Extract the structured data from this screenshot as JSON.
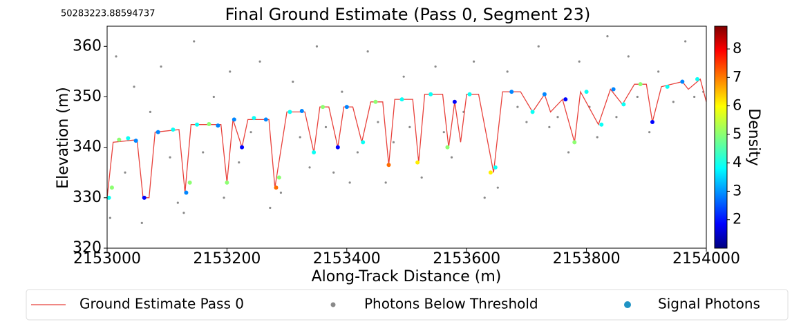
{
  "chart_data": {
    "type": "scatter",
    "title": "Final Ground Estimate (Pass 0, Segment 23)",
    "annotation": "50283223.88594737",
    "x_label": "Along-Track Distance (m)",
    "y_label": "Elevation (m)",
    "xlim": [
      2153000,
      2154000
    ],
    "ylim": [
      320,
      364
    ],
    "xticks": [
      2153000,
      2153200,
      2153400,
      2153600,
      2153800,
      2154000
    ],
    "yticks": [
      320,
      330,
      340,
      350,
      360
    ],
    "colorbar": {
      "label": "Density",
      "colormap": "jet",
      "clim": [
        1,
        8.8
      ],
      "ticks": [
        2,
        3,
        4,
        5,
        6,
        7,
        8
      ]
    },
    "legend": "bottom",
    "line": {
      "name": "Ground Estimate Pass 0",
      "color": "#e8413b",
      "x": [
        2153000,
        2153010,
        2153050,
        2153060,
        2153070,
        2153080,
        2153120,
        2153130,
        2153140,
        2153190,
        2153200,
        2153210,
        2153225,
        2153235,
        2153270,
        2153280,
        2153300,
        2153330,
        2153345,
        2153355,
        2153370,
        2153385,
        2153395,
        2153410,
        2153425,
        2153440,
        2153460,
        2153470,
        2153480,
        2153510,
        2153520,
        2153530,
        2153560,
        2153570,
        2153580,
        2153590,
        2153600,
        2153620,
        2153645,
        2153660,
        2153690,
        2153710,
        2153730,
        2153740,
        2153760,
        2153780,
        2153790,
        2153820,
        2153840,
        2153860,
        2153880,
        2153900,
        2153910,
        2153925,
        2153960,
        2153970,
        2153990,
        2154000
      ],
      "y": [
        330,
        341,
        341.5,
        330,
        330,
        343,
        343.5,
        331,
        344.5,
        344.5,
        333,
        345.5,
        340,
        345.5,
        345.5,
        332,
        347,
        347,
        339,
        348,
        348,
        340,
        348,
        348,
        341,
        349,
        349,
        336.5,
        349.5,
        349.5,
        337,
        350.5,
        350.5,
        340,
        349,
        341,
        350.5,
        350.5,
        335,
        351,
        351,
        347,
        350.5,
        347,
        349.5,
        341,
        351,
        344.5,
        351.5,
        348.5,
        352.5,
        352.5,
        345,
        352,
        353,
        351.5,
        353.5,
        349
      ]
    },
    "gray": {
      "name": "Photons Below Threshold",
      "color": "#8a8a8a",
      "x": [
        2153005,
        2153015,
        2153030,
        2153045,
        2153058,
        2153072,
        2153090,
        2153105,
        2153118,
        2153128,
        2153145,
        2153160,
        2153178,
        2153195,
        2153205,
        2153220,
        2153240,
        2153255,
        2153272,
        2153290,
        2153310,
        2153322,
        2153338,
        2153350,
        2153365,
        2153378,
        2153392,
        2153405,
        2153418,
        2153435,
        2153452,
        2153465,
        2153478,
        2153495,
        2153505,
        2153525,
        2153548,
        2153562,
        2153575,
        2153595,
        2153612,
        2153630,
        2153652,
        2153668,
        2153685,
        2153700,
        2153720,
        2153738,
        2153752,
        2153770,
        2153788,
        2153805,
        2153818,
        2153835,
        2153850,
        2153870,
        2153885,
        2153905,
        2153920,
        2153945,
        2153965,
        2153980,
        2153995
      ],
      "y": [
        326,
        358,
        335,
        352,
        325,
        347,
        356,
        338,
        329,
        327,
        361,
        339,
        350,
        330,
        355,
        337,
        343,
        357,
        328,
        331,
        353,
        342,
        336,
        360,
        344,
        335,
        351,
        333,
        339,
        359,
        345,
        333,
        341,
        354,
        344,
        334,
        356,
        343,
        338,
        347,
        357,
        330,
        332,
        355,
        348,
        345,
        360,
        344,
        346,
        339,
        357,
        348,
        342,
        362,
        346,
        358,
        350,
        343,
        355,
        349,
        361,
        350,
        351
      ]
    },
    "signal": {
      "name": "Signal Photons",
      "color": "#1f93c4",
      "x": [
        2153003,
        2153008,
        2153020,
        2153035,
        2153048,
        2153062,
        2153085,
        2153110,
        2153132,
        2153138,
        2153150,
        2153170,
        2153185,
        2153200,
        2153212,
        2153225,
        2153245,
        2153265,
        2153282,
        2153287,
        2153305,
        2153325,
        2153345,
        2153360,
        2153385,
        2153400,
        2153427,
        2153448,
        2153470,
        2153492,
        2153518,
        2153540,
        2153568,
        2153580,
        2153605,
        2153640,
        2153648,
        2153675,
        2153710,
        2153730,
        2153765,
        2153780,
        2153800,
        2153825,
        2153845,
        2153862,
        2153890,
        2153910,
        2153935,
        2153960,
        2153985
      ],
      "y": [
        330,
        332,
        341.5,
        341.8,
        341.3,
        330,
        343,
        343.5,
        331,
        333,
        344.5,
        344.6,
        344.3,
        333,
        345.5,
        340,
        345.8,
        345.5,
        332,
        334,
        347,
        347.2,
        339,
        348,
        340,
        348,
        341,
        349,
        336.5,
        349.5,
        337,
        350.5,
        340,
        349,
        350.5,
        335,
        336,
        351,
        347,
        350.5,
        349.5,
        341,
        351,
        344.5,
        351.5,
        348.5,
        352.5,
        345,
        352,
        353,
        353.5
      ],
      "density": [
        4,
        5,
        5,
        4,
        3,
        2,
        3,
        4,
        3,
        5,
        4,
        5,
        3,
        5,
        3,
        2,
        4,
        3,
        7,
        5,
        4,
        3,
        4,
        5,
        2,
        3,
        4,
        5,
        7,
        4,
        6,
        4,
        5,
        2,
        4,
        6,
        4,
        3,
        4,
        3,
        2,
        5,
        4,
        4,
        3,
        4,
        5,
        2,
        4,
        3,
        4
      ]
    }
  }
}
